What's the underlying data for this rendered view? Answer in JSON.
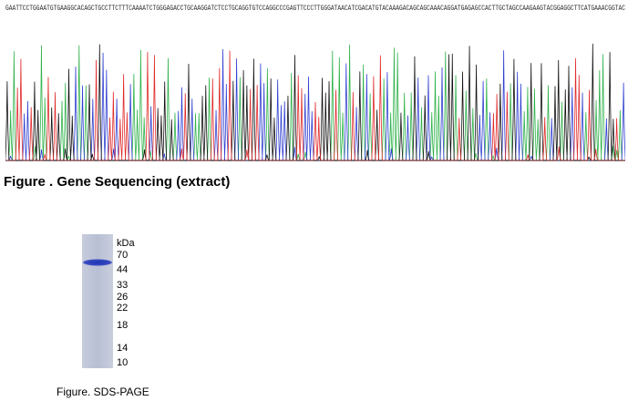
{
  "sequence": {
    "bases": "GAATTCCTGGAATGTGAAGGCACAGCTGCCTTCTTTCAAAATCTGGGAGACCTGCAAGGATCTCCTGCAGGTGTCCAGGCCCGAGTTCCCTTGGGATAACATCGACATGTACAAAGACAGCAGCAAACAGGATGAGAGCCACTTGCTAGCCAAGAAGTACGGAGGCTTCATGAAACGGTAC",
    "caption": "Figure . Gene Sequencing (extract)",
    "colors": {
      "A": "#2fb24a",
      "C": "#2f3fd0",
      "G": "#111111",
      "T": "#e02a2a"
    }
  },
  "gel": {
    "unit": "kDa",
    "ladder": [
      "70",
      "44",
      "33",
      "26",
      "22",
      "18",
      "14",
      "10"
    ],
    "caption": "Figure. SDS-PAGE",
    "band_color": "#2a3fb8"
  }
}
